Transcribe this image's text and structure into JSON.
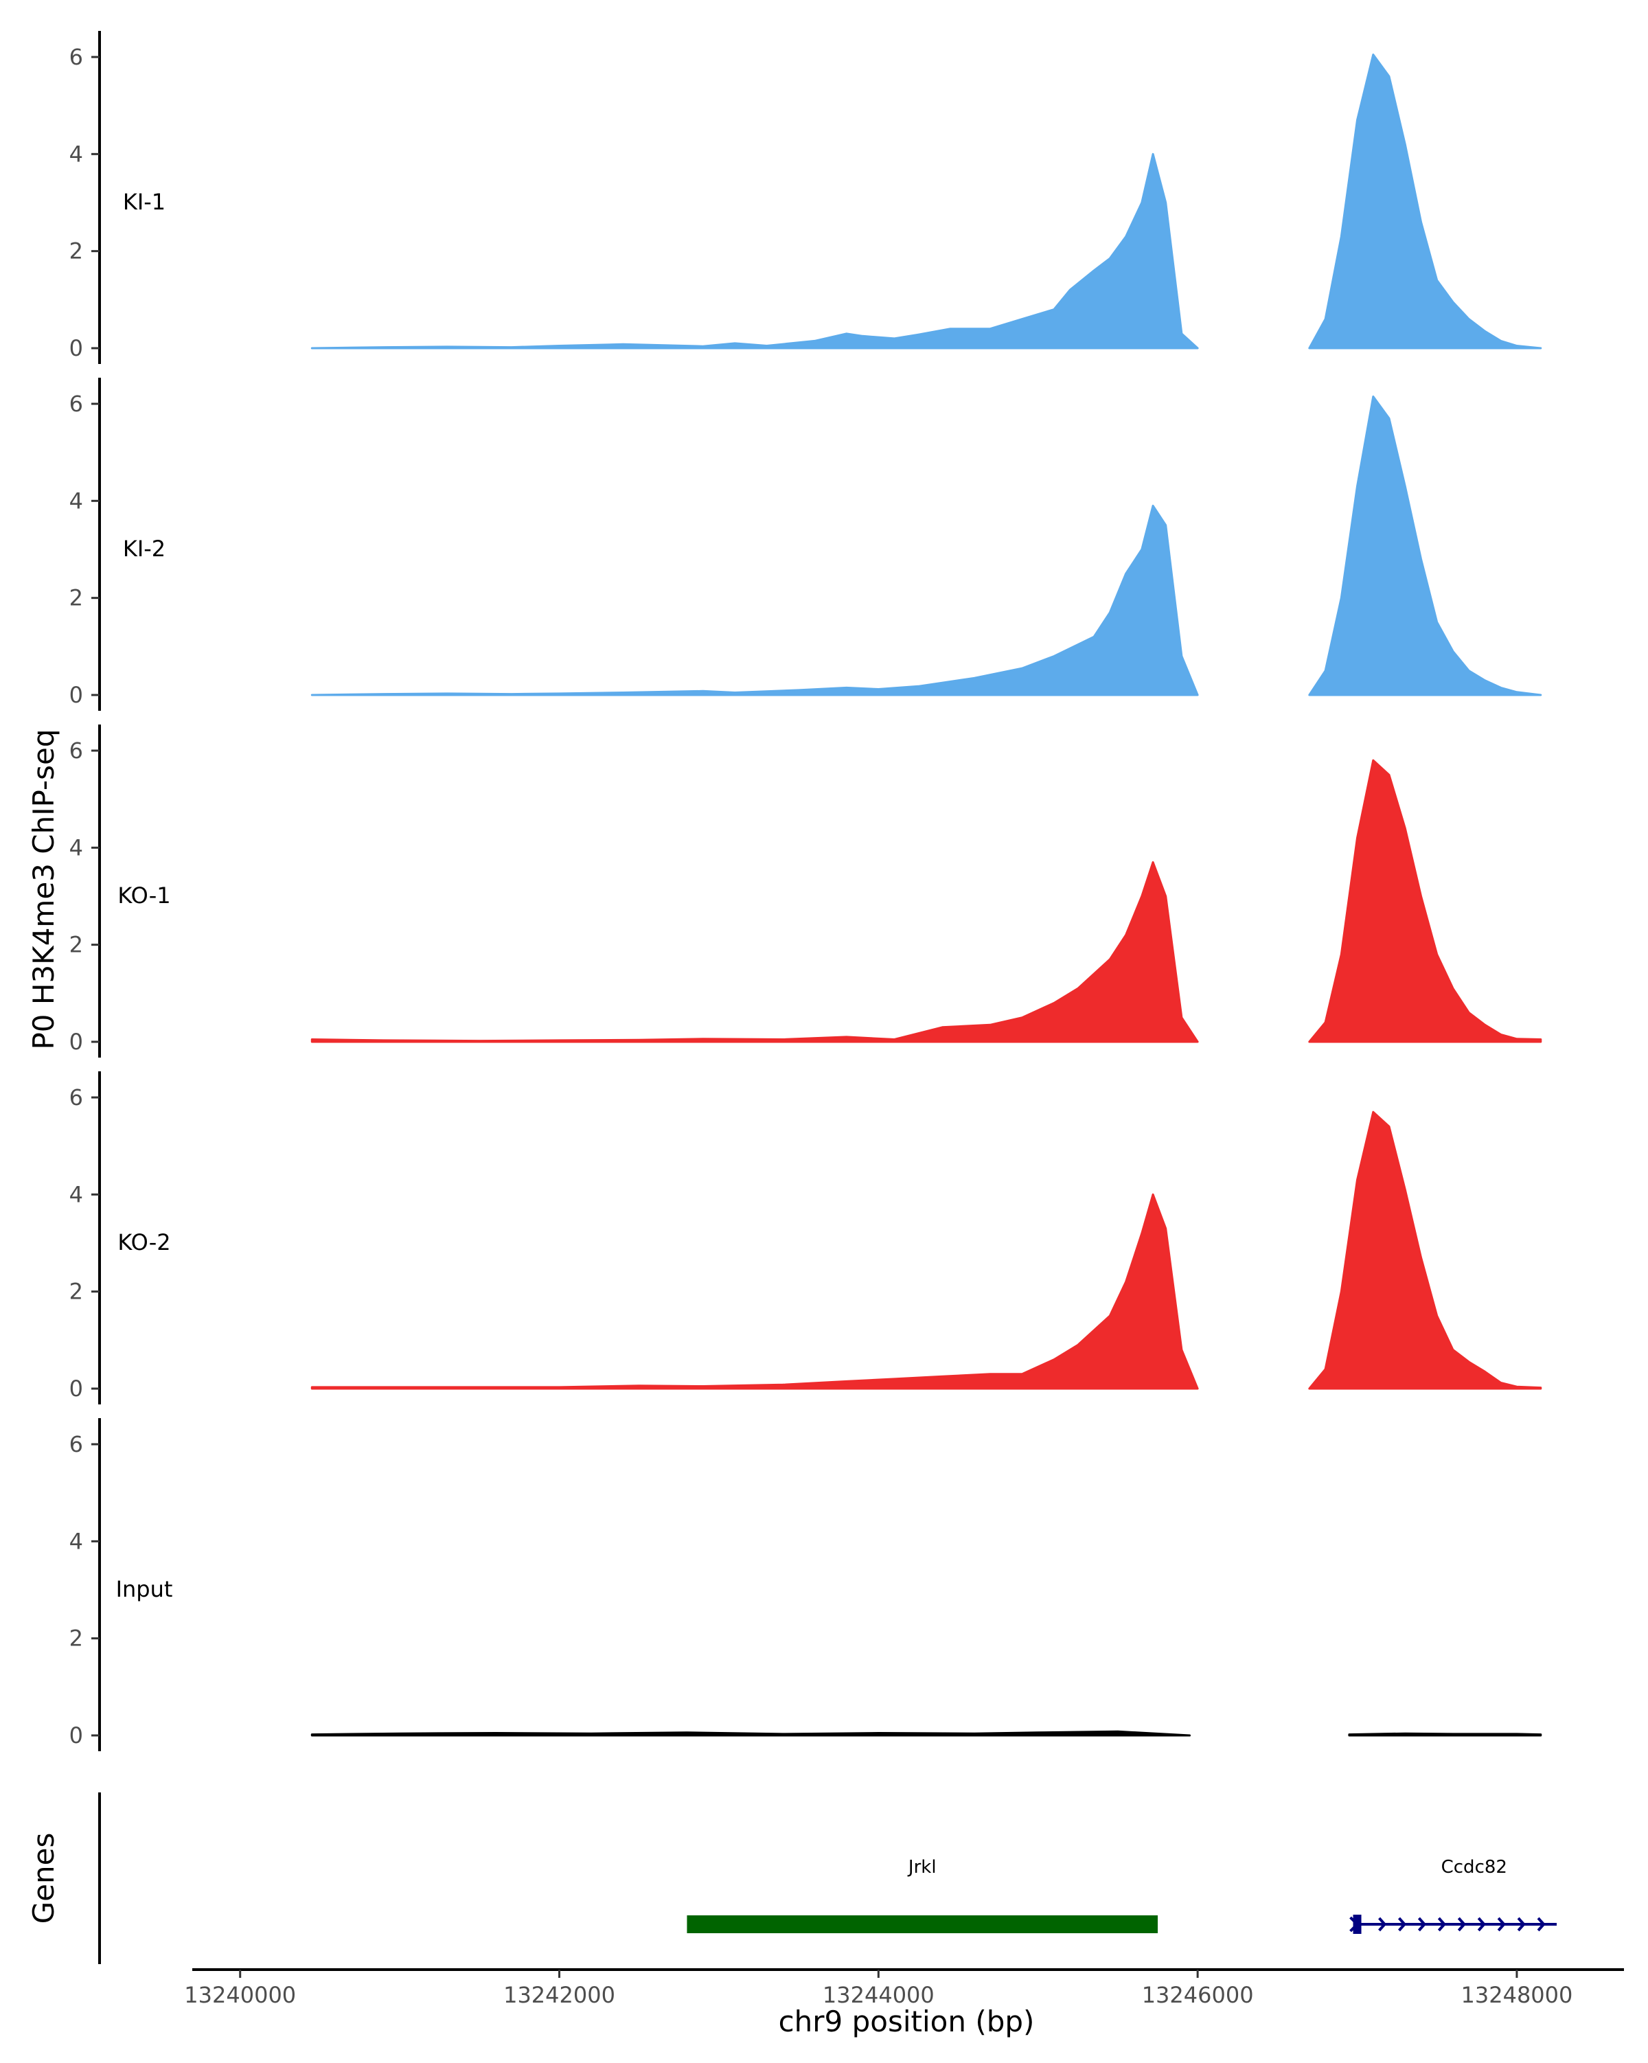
{
  "chart_data": {
    "type": "area",
    "ylabel": "P0 H3K4me3 ChIP-seq",
    "xlabel": "chr9 position (bp)",
    "x_ticks": [
      13240000,
      13242000,
      13244000,
      13246000,
      13248000
    ],
    "xlim": [
      13239700,
      13248650
    ],
    "y_ticks": [
      0,
      2,
      4,
      6
    ],
    "ylim": [
      0,
      6.5
    ],
    "grid": false,
    "colors": {
      "KI": "#5dabeb",
      "KO": "#ee2b2c",
      "Input": "#000000",
      "Jrkl": "#006400",
      "Ccdc82": "#000080"
    },
    "tracks": [
      {
        "name": "KI-1",
        "color": "#5dabeb",
        "segments": [
          {
            "x": [
              13240450,
              13240900,
              13241300,
              13241700,
              13242000,
              13242400,
              13242900,
              13243100,
              13243300,
              13243600,
              13243800,
              13243900,
              13244100,
              13244250,
              13244450,
              13244700,
              13244900,
              13245000,
              13245100,
              13245200,
              13245350,
              13245450,
              13245550,
              13245650,
              13245720,
              13245800,
              13245900,
              13246000
            ],
            "y": [
              0.0,
              0.02,
              0.03,
              0.02,
              0.05,
              0.08,
              0.04,
              0.1,
              0.05,
              0.15,
              0.3,
              0.25,
              0.2,
              0.28,
              0.4,
              0.4,
              0.6,
              0.7,
              0.8,
              1.2,
              1.6,
              1.85,
              2.3,
              3.0,
              4.0,
              3.0,
              0.3,
              0.0
            ]
          },
          {
            "x": [
              13246700,
              13246800,
              13246900,
              13247000,
              13247100,
              13247200,
              13247300,
              13247400,
              13247500,
              13247600,
              13247700,
              13247800,
              13247900,
              13248000,
              13248150
            ],
            "y": [
              0.0,
              0.6,
              2.3,
              4.7,
              6.05,
              5.6,
              4.2,
              2.6,
              1.4,
              0.95,
              0.6,
              0.35,
              0.15,
              0.05,
              0.0
            ]
          }
        ]
      },
      {
        "name": "KI-2",
        "color": "#5dabeb",
        "segments": [
          {
            "x": [
              13240450,
              13240900,
              13241300,
              13241700,
              13242000,
              13242400,
              13242900,
              13243100,
              13243500,
              13243800,
              13244000,
              13244250,
              13244600,
              13244900,
              13245100,
              13245350,
              13245450,
              13245550,
              13245650,
              13245720,
              13245800,
              13245900,
              13246000
            ],
            "y": [
              0.0,
              0.02,
              0.03,
              0.02,
              0.03,
              0.05,
              0.08,
              0.05,
              0.1,
              0.15,
              0.12,
              0.18,
              0.35,
              0.55,
              0.8,
              1.2,
              1.7,
              2.5,
              3.0,
              3.9,
              3.5,
              0.8,
              0.0
            ]
          },
          {
            "x": [
              13246700,
              13246800,
              13246900,
              13247000,
              13247100,
              13247200,
              13247300,
              13247400,
              13247500,
              13247600,
              13247700,
              13247800,
              13247900,
              13248000,
              13248150
            ],
            "y": [
              0.0,
              0.5,
              2.0,
              4.3,
              6.15,
              5.7,
              4.3,
              2.8,
              1.5,
              0.9,
              0.5,
              0.3,
              0.15,
              0.06,
              0.0
            ]
          }
        ]
      },
      {
        "name": "KO-1",
        "color": "#ee2b2c",
        "segments": [
          {
            "x": [
              13240450,
              13240900,
              13241500,
              13242000,
              13242500,
              13242900,
              13243400,
              13243800,
              13244100,
              13244400,
              13244700,
              13244900,
              13245100,
              13245250,
              13245450,
              13245550,
              13245650,
              13245720,
              13245800,
              13245900,
              13246000
            ],
            "y": [
              0.05,
              0.03,
              0.02,
              0.03,
              0.04,
              0.06,
              0.05,
              0.1,
              0.05,
              0.3,
              0.35,
              0.5,
              0.8,
              1.1,
              1.7,
              2.2,
              3.0,
              3.7,
              3.0,
              0.5,
              0.0
            ]
          },
          {
            "x": [
              13246700,
              13246800,
              13246900,
              13247000,
              13247100,
              13247200,
              13247300,
              13247400,
              13247500,
              13247600,
              13247700,
              13247800,
              13247900,
              13248000,
              13248150
            ],
            "y": [
              0.0,
              0.4,
              1.8,
              4.2,
              5.8,
              5.5,
              4.4,
              3.0,
              1.8,
              1.1,
              0.6,
              0.35,
              0.15,
              0.06,
              0.05
            ]
          }
        ]
      },
      {
        "name": "KO-2",
        "color": "#ee2b2c",
        "segments": [
          {
            "x": [
              13240450,
              13240900,
              13241500,
              13242000,
              13242500,
              13242900,
              13243400,
              13243800,
              13244100,
              13244400,
              13244700,
              13244900,
              13245100,
              13245250,
              13245450,
              13245550,
              13245650,
              13245720,
              13245800,
              13245900,
              13246000
            ],
            "y": [
              0.03,
              0.03,
              0.03,
              0.03,
              0.06,
              0.05,
              0.08,
              0.15,
              0.2,
              0.25,
              0.3,
              0.3,
              0.6,
              0.9,
              1.5,
              2.2,
              3.2,
              4.0,
              3.3,
              0.8,
              0.0
            ]
          },
          {
            "x": [
              13246700,
              13246800,
              13246900,
              13247000,
              13247100,
              13247200,
              13247300,
              13247400,
              13247500,
              13247600,
              13247700,
              13247800,
              13247900,
              13248000,
              13248150
            ],
            "y": [
              0.0,
              0.4,
              2.0,
              4.3,
              5.7,
              5.4,
              4.1,
              2.7,
              1.5,
              0.8,
              0.55,
              0.35,
              0.12,
              0.04,
              0.02
            ]
          }
        ]
      },
      {
        "name": "Input",
        "color": "#000000",
        "segments": [
          {
            "x": [
              13240450,
              13241000,
              13241600,
              13242200,
              13242800,
              13243400,
              13244000,
              13244600,
              13245000,
              13245500,
              13245950
            ],
            "y": [
              0.02,
              0.04,
              0.05,
              0.04,
              0.06,
              0.03,
              0.05,
              0.04,
              0.06,
              0.08,
              0.0
            ]
          },
          {
            "x": [
              13246950,
              13247300,
              13247600,
              13248000,
              13248150
            ],
            "y": [
              0.02,
              0.04,
              0.03,
              0.03,
              0.02
            ]
          }
        ]
      }
    ],
    "genes_track": {
      "label": "Genes",
      "genes": [
        {
          "name": "Jrkl",
          "start": 13242800,
          "end": 13245750,
          "color": "#006400",
          "strand": ""
        },
        {
          "name": "Ccdc82",
          "start": 13247000,
          "end": 13248250,
          "color": "#000080",
          "strand": "+"
        }
      ]
    }
  }
}
